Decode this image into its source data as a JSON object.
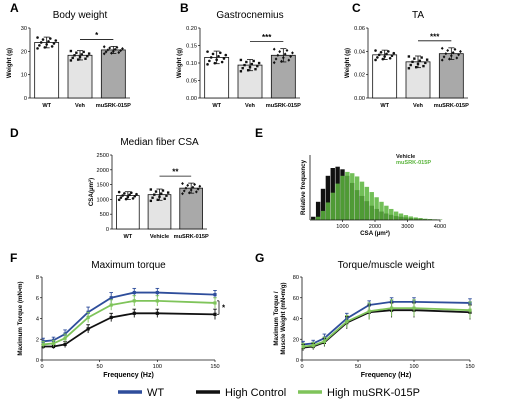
{
  "panel_labels": [
    "A",
    "B",
    "C",
    "D",
    "E",
    "F",
    "G"
  ],
  "chart_data": [
    {
      "panel": "A",
      "type": "bar",
      "title": "Body weight",
      "categories": [
        "WT",
        "Veh",
        "muSRK-015P"
      ],
      "values": [
        23.8,
        18.3,
        20.6
      ],
      "errors": [
        2.3,
        2.0,
        1.5
      ],
      "fills": [
        "#ffffff",
        "#e4e4e4",
        "#a9a9a9"
      ],
      "ylabel": "Weight (g)",
      "ylim": [
        0,
        30
      ],
      "yticks": [
        0,
        10,
        20,
        30
      ],
      "significance": {
        "between": [
          1,
          2
        ],
        "label": "*"
      }
    },
    {
      "panel": "B",
      "type": "bar",
      "title": "Gastrocnemius",
      "categories": [
        "WT",
        "Veh",
        "muSRK-015P"
      ],
      "values": [
        0.116,
        0.094,
        0.122
      ],
      "errors": [
        0.018,
        0.016,
        0.019
      ],
      "fills": [
        "#ffffff",
        "#e4e4e4",
        "#a9a9a9"
      ],
      "ylabel": "Weight (g)",
      "ylim": [
        0,
        0.2
      ],
      "yticks": [
        0,
        0.05,
        0.1,
        0.15,
        0.2
      ],
      "ytick_labels": [
        "0.00",
        "0.05",
        "0.10",
        "0.15",
        "0.20"
      ],
      "significance": {
        "between": [
          1,
          2
        ],
        "label": "***"
      }
    },
    {
      "panel": "C",
      "type": "bar",
      "title": "TA",
      "categories": [
        "WT",
        "Veh",
        "muSRK-015P"
      ],
      "values": [
        0.037,
        0.031,
        0.038
      ],
      "errors": [
        0.004,
        0.005,
        0.005
      ],
      "fills": [
        "#ffffff",
        "#e4e4e4",
        "#a9a9a9"
      ],
      "ylabel": "Weight (g)",
      "ylim": [
        0,
        0.06
      ],
      "yticks": [
        0,
        0.02,
        0.04,
        0.06
      ],
      "ytick_labels": [
        "0.00",
        "0.02",
        "0.04",
        "0.06"
      ],
      "significance": {
        "between": [
          1,
          2
        ],
        "label": "***"
      }
    },
    {
      "panel": "D",
      "type": "bar",
      "title": "Median fiber CSA",
      "categories": [
        "WT",
        "Vehicle",
        "muSRK-015P"
      ],
      "values": [
        1130,
        1160,
        1380
      ],
      "errors": [
        130,
        190,
        170
      ],
      "fills": [
        "#ffffff",
        "#e4e4e4",
        "#a9a9a9"
      ],
      "ylabel": "CSA(µm²)",
      "ylim": [
        0,
        2500
      ],
      "yticks": [
        0,
        500,
        1000,
        1500,
        2000,
        2500
      ],
      "significance": {
        "between": [
          1,
          2
        ],
        "label": "**"
      }
    },
    {
      "panel": "E",
      "type": "bar",
      "subtype": "histogram",
      "xlabel": "CSA (µm²)",
      "ylabel": "Relative frequency",
      "xlim": [
        0,
        4000
      ],
      "xticks": [
        1000,
        2000,
        3000,
        4000
      ],
      "legend_position": "top-right",
      "series": [
        {
          "name": "Vehicle",
          "color": "#111111",
          "x": [
            100,
            250,
            400,
            550,
            700,
            850,
            1000,
            1150,
            1300,
            1450,
            1600,
            1750,
            1900,
            2050,
            2200,
            2350,
            2500,
            2650,
            2800,
            2950,
            3100,
            3250,
            3400,
            3550,
            3700,
            3850,
            4000
          ],
          "values": [
            0.05,
            0.28,
            0.48,
            0.68,
            0.8,
            0.82,
            0.78,
            0.68,
            0.57,
            0.46,
            0.37,
            0.29,
            0.22,
            0.17,
            0.13,
            0.1,
            0.08,
            0.06,
            0.05,
            0.04,
            0.03,
            0.025,
            0.02,
            0.015,
            0.01,
            0.008,
            0.005
          ]
        },
        {
          "name": "muSRK-015P",
          "color": "#5ab43c",
          "x": [
            100,
            250,
            400,
            550,
            700,
            850,
            1000,
            1150,
            1300,
            1450,
            1600,
            1750,
            1900,
            2050,
            2200,
            2350,
            2500,
            2650,
            2800,
            2950,
            3100,
            3250,
            3400,
            3550,
            3700,
            3850,
            4000
          ],
          "values": [
            0.01,
            0.05,
            0.14,
            0.27,
            0.42,
            0.56,
            0.68,
            0.74,
            0.72,
            0.67,
            0.59,
            0.51,
            0.43,
            0.35,
            0.28,
            0.22,
            0.17,
            0.13,
            0.1,
            0.075,
            0.055,
            0.04,
            0.03,
            0.02,
            0.015,
            0.01,
            0.006
          ]
        }
      ]
    },
    {
      "panel": "F",
      "type": "line",
      "title": "Maximum torque",
      "xlabel": "Frequency (Hz)",
      "ylabel": "Maximum Torque (mN•m)",
      "xlim": [
        0,
        150
      ],
      "xticks": [
        0,
        50,
        100,
        150
      ],
      "ylim": [
        0,
        8
      ],
      "yticks": [
        0,
        2,
        4,
        6,
        8
      ],
      "x": [
        1,
        10,
        20,
        40,
        60,
        80,
        100,
        150
      ],
      "series": [
        {
          "name": "WT",
          "color": "#2e4d9b",
          "values": [
            1.8,
            1.9,
            2.5,
            4.6,
            6.0,
            6.5,
            6.5,
            6.3
          ],
          "errors": [
            0.3,
            0.3,
            0.4,
            0.5,
            0.5,
            0.4,
            0.4,
            0.4
          ]
        },
        {
          "name": "High Control",
          "color": "#111111",
          "values": [
            1.3,
            1.3,
            1.5,
            3.0,
            4.1,
            4.5,
            4.5,
            4.4
          ],
          "errors": [
            0.2,
            0.2,
            0.3,
            0.4,
            0.4,
            0.4,
            0.4,
            0.5
          ]
        },
        {
          "name": "High muSRK-015P",
          "color": "#7fc45a",
          "values": [
            1.5,
            1.6,
            2.1,
            4.1,
            5.3,
            5.7,
            5.7,
            5.5
          ],
          "errors": [
            0.3,
            0.3,
            0.4,
            0.5,
            0.5,
            0.5,
            0.5,
            0.5
          ]
        }
      ],
      "significance": {
        "label": "*"
      }
    },
    {
      "panel": "G",
      "type": "line",
      "title": "Torque/muscle weight",
      "xlabel": "Frequency (Hz)",
      "ylabel": "Maximum Torque / Muscle Weight (mN•m/g)",
      "xlim": [
        0,
        150
      ],
      "xticks": [
        0,
        50,
        100,
        150
      ],
      "ylim": [
        0,
        80
      ],
      "yticks": [
        0,
        20,
        40,
        60,
        80
      ],
      "x": [
        1,
        10,
        20,
        40,
        60,
        80,
        100,
        150
      ],
      "series": [
        {
          "name": "WT",
          "color": "#2e4d9b",
          "values": [
            15,
            16,
            21,
            40,
            53,
            56,
            56,
            55
          ],
          "errors": [
            3,
            3,
            4,
            5,
            4,
            4,
            4,
            4
          ]
        },
        {
          "name": "High Control",
          "color": "#111111",
          "values": [
            12,
            13,
            17,
            36,
            46,
            48,
            48,
            46
          ],
          "errors": [
            3,
            3,
            4,
            6,
            7,
            7,
            7,
            7
          ]
        },
        {
          "name": "High muSRK-015P",
          "color": "#7fc45a",
          "values": [
            13,
            14,
            18,
            37,
            47,
            50,
            50,
            48
          ],
          "errors": [
            3,
            3,
            4,
            6,
            8,
            8,
            8,
            8
          ]
        }
      ]
    }
  ],
  "legend": [
    {
      "label": "WT",
      "color": "#2e4d9b"
    },
    {
      "label": "High Control",
      "color": "#111111"
    },
    {
      "label": "High muSRK-015P",
      "color": "#7fc45a"
    }
  ]
}
